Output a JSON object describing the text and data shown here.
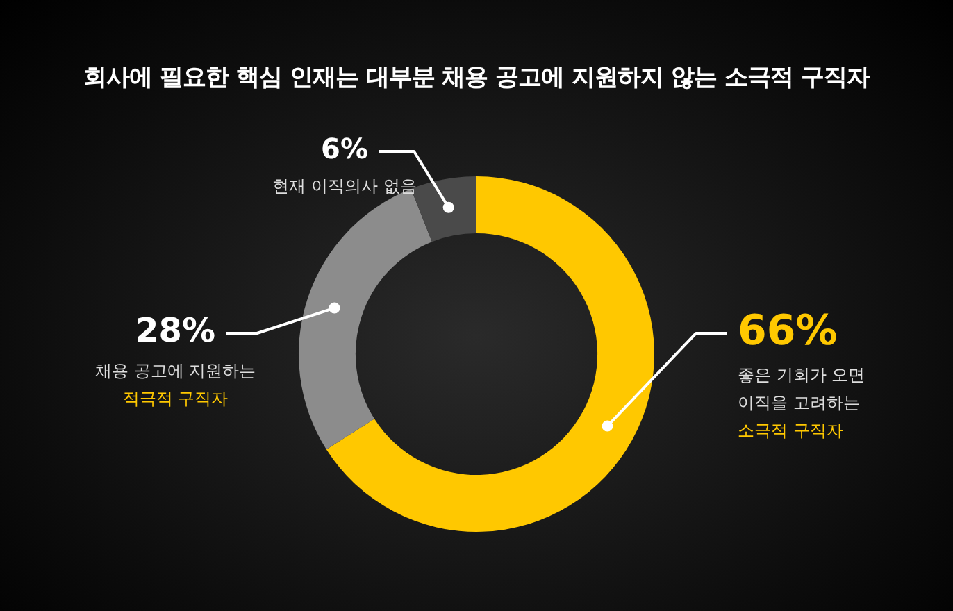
{
  "chart_data": {
    "type": "donut",
    "title": "회사에 필요한 핵심 인재는 대부분 채용 공고에 지원하지 않는 소극적 구직자",
    "categories": [
      "좋은 기회가 오면\n이직을 고려하는\n소극적 구직자",
      "채용 공고에 지원하는\n적극적 구직자",
      "현재 이직의사 없음"
    ],
    "values": [
      66,
      28,
      6
    ],
    "colors": [
      "#ffc800",
      "#8c8c8c",
      "#4a4a4a"
    ],
    "value_labels": [
      "66%",
      "28%",
      "6%"
    ],
    "legend": false
  }
}
